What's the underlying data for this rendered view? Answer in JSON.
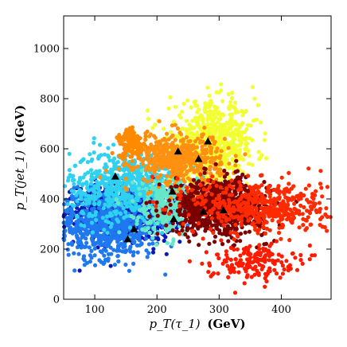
{
  "chart_data": {
    "type": "scatter",
    "title": "",
    "xlabel_math": "p_T(τ_1)",
    "xlabel_unit": "(GeV)",
    "ylabel_math": "p_T(jet_1)",
    "ylabel_unit": "(GeV)",
    "xlim": [
      50,
      480
    ],
    "ylim": [
      0,
      1130
    ],
    "x_ticks": [
      100,
      200,
      300,
      400
    ],
    "y_ticks": [
      0,
      200,
      400,
      600,
      800,
      1000
    ],
    "grid": false,
    "legend": "none",
    "clusters": [
      {
        "name": "",
        "color": "#0a1ab8",
        "center": [
          150,
          345
        ],
        "spread": [
          48,
          55
        ],
        "n": 900
      },
      {
        "name": "",
        "color": "#1f78f0",
        "center": [
          120,
          300
        ],
        "spread": [
          45,
          70
        ],
        "n": 700
      },
      {
        "name": "",
        "color": "#2ed2f0",
        "center": [
          150,
          450
        ],
        "spread": [
          45,
          70
        ],
        "n": 650
      },
      {
        "name": "",
        "color": "#66e8c8",
        "center": [
          215,
          370
        ],
        "spread": [
          25,
          60
        ],
        "n": 300
      },
      {
        "name": "",
        "color": "#f2ff30",
        "center": [
          290,
          620
        ],
        "spread": [
          35,
          80
        ],
        "n": 650
      },
      {
        "name": "",
        "color": "#ff9010",
        "center": [
          235,
          560
        ],
        "spread": [
          35,
          50
        ],
        "n": 500
      },
      {
        "name": "",
        "color": "#ff8a00",
        "center": [
          160,
          620
        ],
        "spread": [
          12,
          30
        ],
        "n": 120
      },
      {
        "name": "",
        "color": "#7a0000",
        "center": [
          300,
          370
        ],
        "spread": [
          38,
          55
        ],
        "n": 800
      },
      {
        "name": "",
        "color": "#ff2a00",
        "center": [
          370,
          370
        ],
        "spread": [
          55,
          55
        ],
        "n": 500
      },
      {
        "name": "",
        "color": "#ff1a00",
        "center": [
          350,
          150
        ],
        "spread": [
          35,
          35
        ],
        "n": 160
      }
    ],
    "cluster_centers": [
      {
        "x": 133,
        "y": 490
      },
      {
        "x": 163,
        "y": 280
      },
      {
        "x": 153,
        "y": 240
      },
      {
        "x": 225,
        "y": 430
      },
      {
        "x": 227,
        "y": 320
      },
      {
        "x": 234,
        "y": 590
      },
      {
        "x": 267,
        "y": 560
      },
      {
        "x": 282,
        "y": 630
      },
      {
        "x": 275,
        "y": 350
      },
      {
        "x": 307,
        "y": 355
      }
    ],
    "center_marker": "triangle",
    "center_color": "#000000"
  }
}
